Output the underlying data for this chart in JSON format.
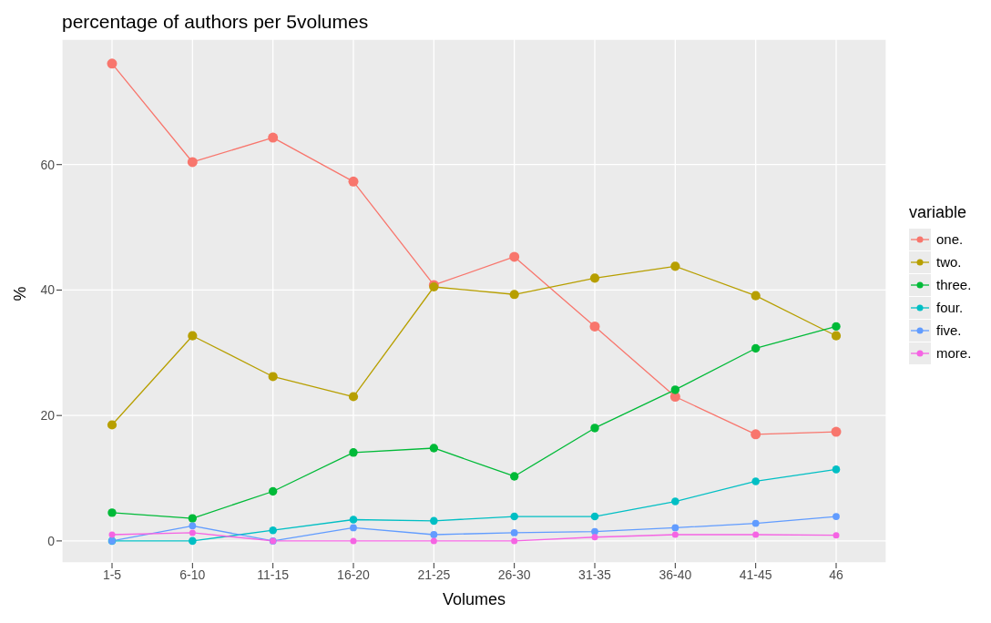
{
  "chart_data": {
    "type": "line",
    "title": "percentage of authors per 5volumes",
    "xlabel": "Volumes",
    "ylabel": "%",
    "legend_title": "variable",
    "categories": [
      "1-5",
      "6-10",
      "11-15",
      "16-20",
      "21-25",
      "26-30",
      "31-35",
      "36-40",
      "41-45",
      "46"
    ],
    "series": [
      {
        "name": "one.",
        "color": "#f8766d",
        "values": [
          76.1,
          60.4,
          64.3,
          57.3,
          40.8,
          45.3,
          34.2,
          23.0,
          17.0,
          17.4
        ]
      },
      {
        "name": "two.",
        "color": "#b79f00",
        "values": [
          18.5,
          32.7,
          26.2,
          23.0,
          40.5,
          39.3,
          41.9,
          43.8,
          39.1,
          32.7
        ]
      },
      {
        "name": "three.",
        "color": "#00ba38",
        "values": [
          4.5,
          3.6,
          7.9,
          14.1,
          14.8,
          10.3,
          18.0,
          24.1,
          30.7,
          34.2
        ]
      },
      {
        "name": "four.",
        "color": "#00bfc4",
        "values": [
          0,
          0,
          1.7,
          3.4,
          3.2,
          3.9,
          3.9,
          6.3,
          9.5,
          11.4
        ]
      },
      {
        "name": "five.",
        "color": "#619cff",
        "values": [
          0,
          2.4,
          0,
          2.1,
          1.0,
          1.3,
          1.5,
          2.1,
          2.8,
          3.9
        ]
      },
      {
        "name": "more.",
        "color": "#f564e3",
        "values": [
          1.0,
          1.3,
          0,
          0,
          0,
          0,
          0.6,
          1.0,
          1.0,
          0.9
        ]
      }
    ],
    "ylim": [
      -3.5,
      80
    ],
    "yticks": [
      0,
      20,
      40,
      60
    ],
    "grid": true,
    "legend": "right",
    "marker": "circle",
    "line_style": "solid"
  }
}
